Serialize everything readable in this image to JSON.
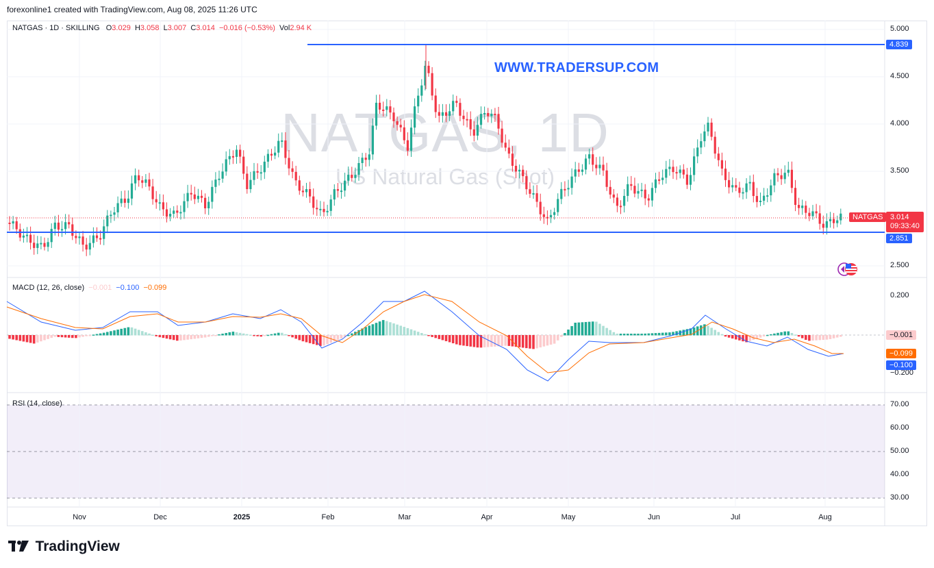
{
  "credit": "forexonline1 created with TradingView.com, Aug 08, 2025 11:26 UTC",
  "legend": {
    "symbol": "NATGAS · 1D · SKILLING",
    "o_label": "O",
    "o": "3.029",
    "h_label": "H",
    "h": "3.058",
    "l_label": "L",
    "l": "3.007",
    "c_label": "C",
    "c": "3.014",
    "change": "−0.016 (−0.53%)",
    "vol_label": "Vol",
    "vol": "2.94 K"
  },
  "watermark": {
    "symbol": "NATGAS, 1D",
    "description": "US Natural Gas (Spot)"
  },
  "site_text": "WWW.TRADERSUP.COM",
  "price_axis": [
    "5.000",
    "4.500",
    "4.000",
    "3.500",
    "2.500"
  ],
  "badges": {
    "resistance": "4.839",
    "support": "2.851",
    "symbol": "NATGAS",
    "last": "3.014",
    "countdown": "09:33:40",
    "macd_hist": "−0.001",
    "macd_signal": "−0.099",
    "macd_line": "−0.100"
  },
  "macd": {
    "title": "MACD (12, 26, close)",
    "v1": "−0.001",
    "v2": "−0.100",
    "v3": "−0.099",
    "axis": [
      "0.200",
      "−0.200"
    ]
  },
  "rsi": {
    "title": "RSI (14, close)",
    "axis": [
      "70.00",
      "60.00",
      "50.00",
      "40.00",
      "30.00"
    ]
  },
  "time_axis": [
    "Nov",
    "Dec",
    "2025",
    "Feb",
    "Mar",
    "Apr",
    "May",
    "Jun",
    "Jul",
    "Aug"
  ],
  "colors": {
    "up": "#22ab94",
    "down": "#f23645",
    "line": "#2962ff",
    "signal": "#ff6d00",
    "rsi_band": "#7e57c2"
  },
  "brand": "TradingView",
  "icons": {
    "flag": "us-flag-icon",
    "brand": "tradingview-logo-icon"
  }
}
